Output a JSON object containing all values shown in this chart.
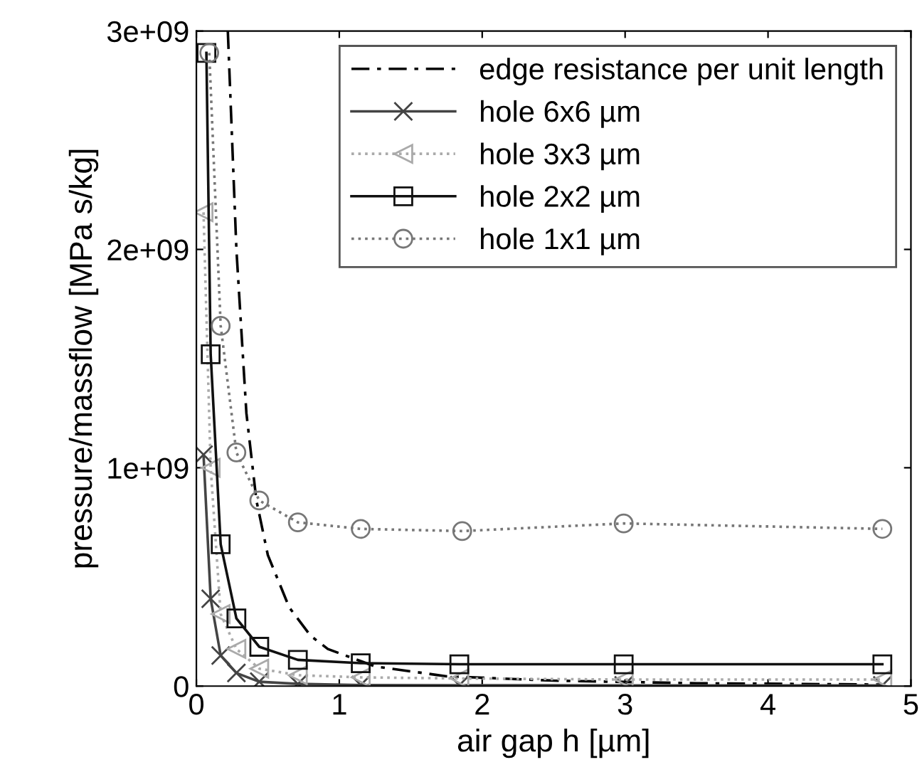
{
  "chart_data": {
    "type": "line",
    "xlabel": "air gap h [µm]",
    "ylabel": "pressure/massflow [MPa s/kg]",
    "xlim": [
      0,
      5
    ],
    "xticks": [
      0,
      1,
      2,
      3,
      4,
      5
    ],
    "ylim": [
      0,
      3000000000
    ],
    "yticks": [
      {
        "value": 0,
        "label": "0"
      },
      {
        "value": 1000000000,
        "label": "1e+09"
      },
      {
        "value": 2000000000,
        "label": "2e+09"
      },
      {
        "value": 3000000000,
        "label": "3e+09"
      }
    ],
    "legend": "top right",
    "grid": false,
    "series": [
      {
        "name": "edge resistance per unit length",
        "color": "#000000",
        "line_style": "dashed",
        "marker": "none",
        "x": [
          0.22,
          0.28,
          0.35,
          0.42,
          0.5,
          0.65,
          0.8,
          0.92,
          1.25,
          1.75,
          2.5,
          3.5,
          4.8
        ],
        "values": [
          3000000000,
          2000000000,
          1250000000,
          850000000,
          600000000,
          360000000,
          230000000,
          170000000,
          90000000,
          45000000,
          25000000,
          13000000,
          7000000
        ]
      },
      {
        "name": "hole 6x6 µm",
        "color": "#444444",
        "line_style": "solid",
        "marker": "cross",
        "x": [
          0.05,
          0.1,
          0.17,
          0.28,
          0.44,
          0.71,
          1.15,
          1.84,
          2.99,
          4.8
        ],
        "values": [
          1060000000,
          400000000,
          140000000,
          60000000,
          20000000,
          10000000,
          5000000,
          4000000,
          3000000,
          3000000
        ]
      },
      {
        "name": "hole 3x3 µm",
        "color": "#aaaaaa",
        "line_style": "dotted",
        "marker": "triangle",
        "x": [
          0.05,
          0.1,
          0.17,
          0.28,
          0.44,
          0.71,
          1.15,
          1.84,
          2.99,
          4.8
        ],
        "values": [
          2170000000,
          1000000000,
          330000000,
          170000000,
          80000000,
          50000000,
          40000000,
          35000000,
          30000000,
          30000000
        ]
      },
      {
        "name": "hole 2x2 µm",
        "color": "#111111",
        "line_style": "solid",
        "marker": "square",
        "x": [
          0.07,
          0.1,
          0.17,
          0.28,
          0.44,
          0.71,
          1.15,
          1.84,
          2.99,
          4.8
        ],
        "values": [
          2900000000,
          1520000000,
          650000000,
          310000000,
          180000000,
          120000000,
          105000000,
          100000000,
          100000000,
          100000000
        ]
      },
      {
        "name": "hole 1x1 µm",
        "color": "#777777",
        "line_style": "dotted",
        "marker": "circle",
        "x": [
          0.09,
          0.17,
          0.28,
          0.44,
          0.71,
          1.15,
          1.86,
          2.99,
          4.8
        ],
        "values": [
          2900000000,
          1650000000,
          1070000000,
          850000000,
          750000000,
          720000000,
          710000000,
          745000000,
          720000000
        ]
      }
    ]
  }
}
